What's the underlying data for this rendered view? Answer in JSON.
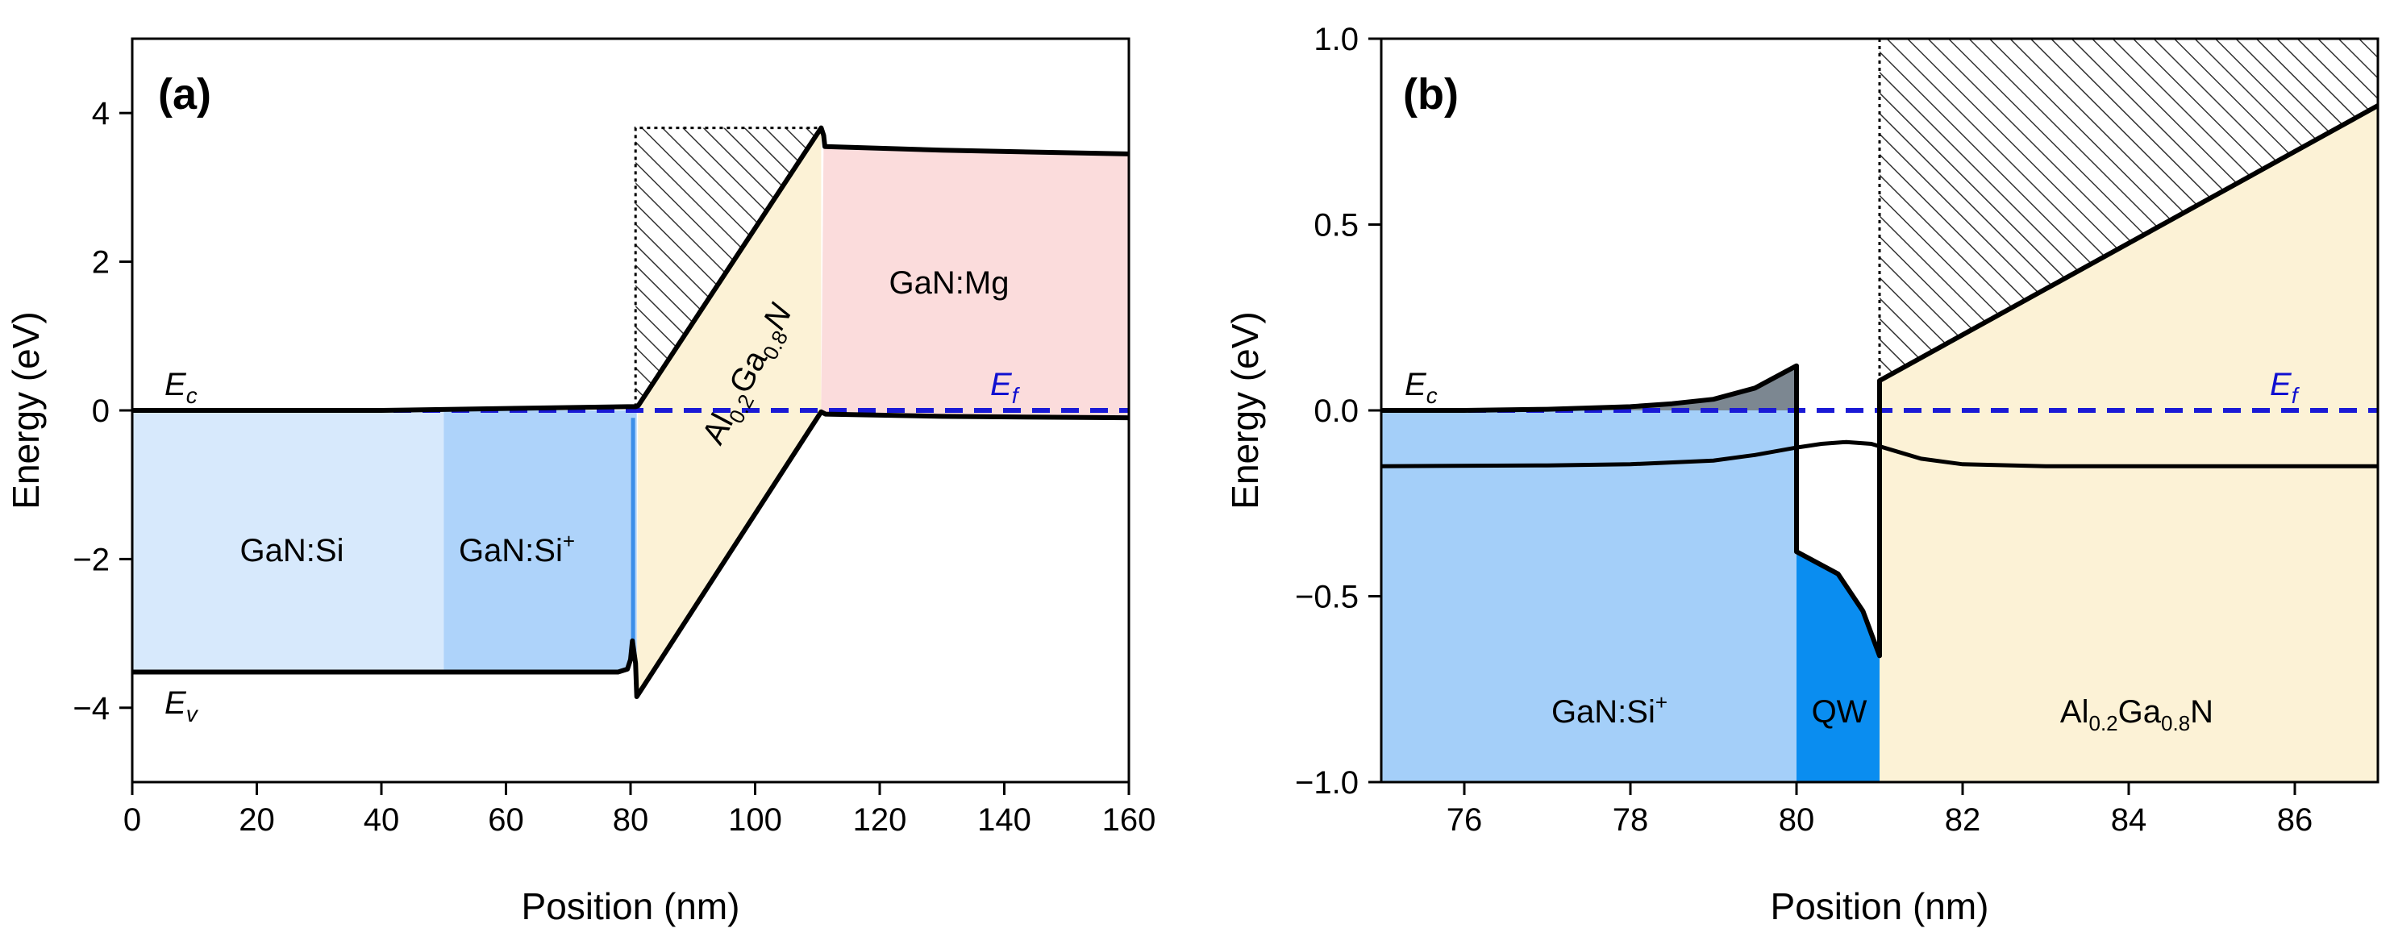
{
  "colors": {
    "fermi_line": "#1a1ad6",
    "band_line": "#000000",
    "gan_si": "#d7e9fc",
    "gan_si_plus": "#aed3fa",
    "gan_si_plus_b": "#a4cff9",
    "qw": "#0a8df0",
    "algan": "#fcf2d6",
    "gan_mg": "#fbdcdc",
    "occupied": "#7c8791",
    "hatch": "#333333"
  },
  "chart_data": [
    {
      "type": "line",
      "panel": "(a)",
      "xlabel": "Position (nm)",
      "ylabel": "Energy (eV)",
      "xlim": [
        0,
        160
      ],
      "ylim": [
        -5,
        5
      ],
      "xticks": [
        0,
        20,
        40,
        60,
        80,
        100,
        120,
        140,
        160
      ],
      "xtick_labels": [
        "0",
        "20",
        "40",
        "60",
        "80",
        "100",
        "120",
        "140",
        "160"
      ],
      "yticks": [
        -4,
        -2,
        0,
        2,
        4
      ],
      "ytick_labels": [
        "−4",
        "−2",
        "0",
        "2",
        "4"
      ],
      "fermi_level": 0,
      "series": [
        {
          "name": "Ec",
          "points": [
            [
              0,
              0.0
            ],
            [
              40,
              0.0
            ],
            [
              79.5,
              0.05
            ],
            [
              80.8,
              0.05
            ],
            [
              81.2,
              0.06
            ],
            [
              110.6,
              3.8
            ],
            [
              111.0,
              3.7
            ],
            [
              111.2,
              3.55
            ],
            [
              130,
              3.5
            ],
            [
              160,
              3.45
            ]
          ]
        },
        {
          "name": "Ev",
          "points": [
            [
              0,
              -3.52
            ],
            [
              78,
              -3.52
            ],
            [
              79.5,
              -3.48
            ],
            [
              80.0,
              -3.35
            ],
            [
              80.3,
              -3.1
            ],
            [
              80.8,
              -3.4
            ],
            [
              81.0,
              -3.85
            ],
            [
              110.6,
              -0.02
            ],
            [
              111.3,
              -0.05
            ],
            [
              130,
              -0.08
            ],
            [
              160,
              -0.1
            ]
          ]
        }
      ],
      "regions": [
        {
          "label": "GaN:Si",
          "x": [
            0,
            50
          ]
        },
        {
          "label": "GaN:Si",
          "sup": "+",
          "x": [
            50,
            80
          ]
        },
        {
          "label": "Al0.2Ga0.8N",
          "x": [
            81,
            111
          ]
        },
        {
          "label": "GaN:Mg",
          "x": [
            111,
            160
          ]
        }
      ],
      "labels": {
        "ec_main": "E",
        "ec_sub": "c",
        "ev_main": "E",
        "ev_sub": "v",
        "ef_main": "E",
        "ef_sub": "f",
        "region_si": "GaN:Si",
        "region_si_plus": "GaN:Si",
        "plus": "+",
        "algan": {
          "a": "Al",
          "s1": "0.2",
          "b": "Ga",
          "s2": "0.8",
          "c": "N"
        },
        "region_mg": "GaN:Mg"
      }
    },
    {
      "type": "line",
      "panel": "(b)",
      "xlabel": "Position (nm)",
      "ylabel": "Energy (eV)",
      "xlim": [
        75,
        87
      ],
      "ylim": [
        -1.0,
        1.0
      ],
      "xticks": [
        76,
        78,
        80,
        82,
        84,
        86
      ],
      "xtick_labels": [
        "76",
        "78",
        "80",
        "82",
        "84",
        "86"
      ],
      "yticks": [
        -1.0,
        -0.5,
        0.0,
        0.5,
        1.0
      ],
      "ytick_labels": [
        "−1.0",
        "−0.5",
        "0.0",
        "0.5",
        "1.0"
      ],
      "fermi_level": 0,
      "series": [
        {
          "name": "Ec",
          "points": [
            [
              75,
              0.0
            ],
            [
              76,
              0.0
            ],
            [
              77,
              0.003
            ],
            [
              78,
              0.01
            ],
            [
              78.5,
              0.018
            ],
            [
              79,
              0.03
            ],
            [
              79.5,
              0.06
            ],
            [
              80,
              0.12
            ],
            [
              80,
              -0.38
            ],
            [
              80.5,
              -0.44
            ],
            [
              80.8,
              -0.54
            ],
            [
              81.0,
              -0.66
            ],
            [
              81.0,
              0.08
            ],
            [
              84,
              0.45
            ],
            [
              87,
              0.82
            ]
          ]
        },
        {
          "name": "Fermi-area-curve",
          "points": [
            [
              75,
              -0.15
            ],
            [
              77,
              -0.148
            ],
            [
              78,
              -0.145
            ],
            [
              79,
              -0.135
            ],
            [
              79.5,
              -0.12
            ],
            [
              80,
              -0.1
            ],
            [
              80.3,
              -0.09
            ],
            [
              80.6,
              -0.085
            ],
            [
              80.9,
              -0.09
            ],
            [
              81.2,
              -0.11
            ],
            [
              81.5,
              -0.13
            ],
            [
              82,
              -0.145
            ],
            [
              83,
              -0.15
            ],
            [
              87,
              -0.15
            ]
          ]
        }
      ],
      "regions": [
        {
          "label": "GaN:Si",
          "sup": "+",
          "x": [
            75,
            80
          ]
        },
        {
          "label": "QW",
          "x": [
            80,
            81
          ]
        },
        {
          "label": "Al0.2Ga0.8N",
          "x": [
            81,
            87
          ]
        }
      ],
      "labels": {
        "ec_main": "E",
        "ec_sub": "c",
        "ef_main": "E",
        "ef_sub": "f",
        "region_si_plus": "GaN:Si",
        "plus": "+",
        "qw": "QW",
        "algan": {
          "a": "Al",
          "s1": "0.2",
          "b": "Ga",
          "s2": "0.8",
          "c": "N"
        }
      }
    }
  ]
}
